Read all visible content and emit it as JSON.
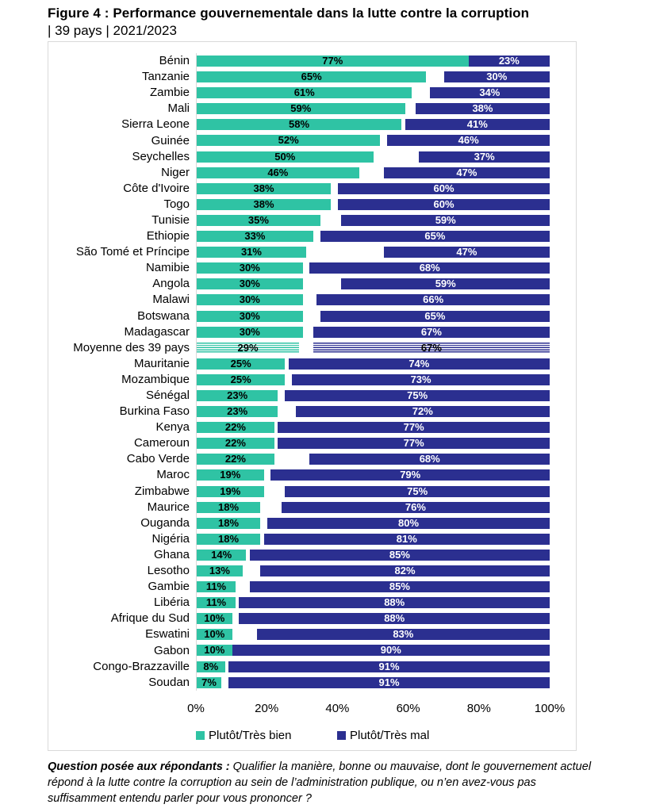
{
  "header": {
    "title": "Figure 4 : Performance gouvernementale dans la lutte contre la corruption",
    "subtitle": "| 39 pays | 2021/2023"
  },
  "chart_data": {
    "type": "bar",
    "orientation": "horizontal",
    "title": "Performance gouvernementale dans la lutte contre la corruption",
    "subtitle": "| 39 pays | 2021/2023",
    "value_suffix": "%",
    "xlim": [
      0,
      100
    ],
    "x_ticks": [
      "0%",
      "20%",
      "40%",
      "60%",
      "80%",
      "100%"
    ],
    "grid": "off",
    "layout_note": "first series anchored left at 0, second series anchored right at 100",
    "highlight_index": 18,
    "categories": [
      "Bénin",
      "Tanzanie",
      "Zambie",
      "Mali",
      "Sierra Leone",
      "Guinée",
      "Seychelles",
      "Niger",
      "Côte d'Ivoire",
      "Togo",
      "Tunisie",
      "Ethiopie",
      "São Tomé et Príncipe",
      "Namibie",
      "Angola",
      "Malawi",
      "Botswana",
      "Madagascar",
      "Moyenne des 39 pays",
      "Mauritanie",
      "Mozambique",
      "Sénégal",
      "Burkina Faso",
      "Kenya",
      "Cameroun",
      "Cabo Verde",
      "Maroc",
      "Zimbabwe",
      "Maurice",
      "Ouganda",
      "Nigéria",
      "Ghana",
      "Lesotho",
      "Gambie",
      "Libéria",
      "Afrique du Sud",
      "Eswatini",
      "Gabon",
      "Congo-Brazzaville",
      "Soudan"
    ],
    "series": [
      {
        "name": "Plutôt/Très bien",
        "color": "#2FC3A4",
        "values": [
          77,
          65,
          61,
          59,
          58,
          52,
          50,
          46,
          38,
          38,
          35,
          33,
          31,
          30,
          30,
          30,
          30,
          30,
          29,
          25,
          25,
          23,
          23,
          22,
          22,
          22,
          19,
          19,
          18,
          18,
          18,
          14,
          13,
          11,
          11,
          10,
          10,
          10,
          8,
          7
        ]
      },
      {
        "name": "Plutôt/Très mal",
        "color": "#2B2F90",
        "values": [
          23,
          30,
          34,
          38,
          41,
          46,
          37,
          47,
          60,
          60,
          59,
          65,
          47,
          68,
          59,
          66,
          65,
          67,
          67,
          74,
          73,
          75,
          72,
          77,
          77,
          68,
          79,
          75,
          76,
          80,
          81,
          85,
          82,
          85,
          88,
          88,
          83,
          90,
          91,
          91
        ]
      }
    ],
    "legend_position": "bottom"
  },
  "legend": {
    "items": [
      {
        "label": "Plutôt/Très bien",
        "color": "#2FC3A4"
      },
      {
        "label": "Plutôt/Très mal",
        "color": "#2B2F90"
      }
    ]
  },
  "footer": {
    "lead": "Question posée aux répondants :",
    "text": " Qualifier la manière, bonne ou mauvaise, dont le gouvernement actuel répond à la lutte contre la corruption au sein de l’administration publique, ou n’en avez-vous pas suffisamment entendu parler pour vous prononcer ?"
  }
}
